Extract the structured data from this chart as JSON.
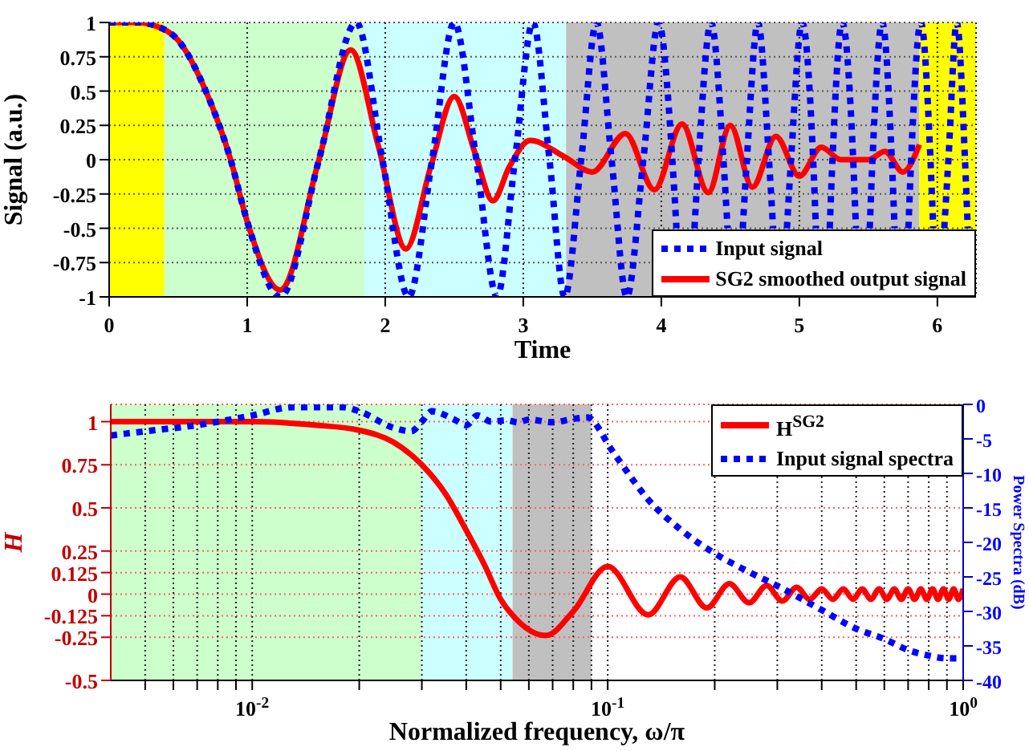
{
  "chart_data": [
    {
      "type": "line",
      "xlabel": "Time",
      "ylabel": "Signal (a.u.)",
      "xlim": [
        0,
        6.28
      ],
      "xticks": [
        0,
        1,
        2,
        3,
        4,
        5,
        6
      ],
      "ylim": [
        -1,
        1
      ],
      "yticks": [
        -1,
        -0.75,
        -0.5,
        -0.25,
        0,
        0.25,
        0.5,
        0.75,
        1
      ],
      "grid": true,
      "legend": "bottom right",
      "bands": [
        {
          "axis": "x",
          "from": 0,
          "to": 0.4,
          "color": "#ffff00"
        },
        {
          "axis": "x",
          "from": 0.4,
          "to": 1.85,
          "color": "#ccffcc"
        },
        {
          "axis": "x",
          "from": 1.85,
          "to": 3.31,
          "color": "#ccffff"
        },
        {
          "axis": "x",
          "from": 3.31,
          "to": 5.87,
          "color": "#c0c0c0"
        },
        {
          "axis": "x",
          "from": 5.87,
          "to": 6.28,
          "color": "#ffff00"
        }
      ],
      "series": [
        {
          "name": "Input signal",
          "color": "#0000ff",
          "line_style": "dotted",
          "x": [
            0,
            0.2,
            0.35,
            0.5,
            0.7,
            0.88,
            1.0,
            1.24,
            1.52,
            1.79,
            1.98,
            2.17,
            2.34,
            2.5,
            2.66,
            2.81,
            2.94,
            3.07,
            3.19,
            3.3,
            3.42,
            3.53,
            3.64,
            3.75,
            3.87,
            3.98,
            4.08,
            4.11,
            4.17,
            4.24,
            4.27,
            4.36,
            4.45,
            4.48,
            4.53,
            4.59,
            4.62,
            4.7,
            4.78,
            4.81,
            4.86,
            4.91,
            4.94,
            5.02,
            5.1,
            5.12,
            5.17,
            5.22,
            5.24,
            5.31,
            5.39,
            5.41,
            5.46,
            5.51,
            5.53,
            5.6,
            5.67,
            5.69,
            5.74,
            5.79,
            5.81,
            5.88,
            5.95,
            5.97,
            6.01,
            6.05,
            6.08,
            6.14,
            6.2,
            6.22
          ],
          "values": [
            1,
            1,
            0.97,
            0.87,
            0.5,
            0,
            -0.45,
            -1,
            0,
            1,
            0,
            -1,
            0,
            1,
            0,
            -1,
            0,
            1,
            0,
            -1,
            0,
            1,
            0,
            -1,
            0,
            1,
            0,
            -0.5,
            null,
            -0.5,
            0,
            1,
            0,
            -0.5,
            null,
            -0.5,
            0,
            1,
            0,
            -0.5,
            null,
            -0.5,
            0,
            1,
            0,
            -0.5,
            null,
            -0.5,
            0,
            1,
            0,
            -0.5,
            null,
            -0.5,
            0,
            1,
            0,
            -0.5,
            null,
            -0.5,
            0,
            1,
            0,
            -0.5,
            null,
            -0.5,
            0,
            1,
            0,
            -0.5
          ]
        },
        {
          "name": "SG2 smoothed output signal",
          "color": "#ff0000",
          "line_style": "solid",
          "x": [
            0,
            0.2,
            0.35,
            0.5,
            0.7,
            0.88,
            1.0,
            1.24,
            1.52,
            1.75,
            1.95,
            2.15,
            2.33,
            2.5,
            2.65,
            2.78,
            2.9,
            3.05,
            3.3,
            3.5,
            3.74,
            3.95,
            4.15,
            4.34,
            4.5,
            4.66,
            4.83,
            5.0,
            5.16,
            5.3,
            5.5,
            5.62,
            5.75,
            5.87
          ],
          "values": [
            1,
            1,
            0.97,
            0.87,
            0.5,
            0,
            -0.45,
            -0.95,
            0,
            0.8,
            0.1,
            -0.65,
            -0.05,
            0.46,
            0.05,
            -0.3,
            -0.05,
            0.14,
            0.02,
            -0.09,
            0.19,
            -0.22,
            0.26,
            -0.24,
            0.25,
            -0.2,
            0.17,
            -0.12,
            0.09,
            0,
            0,
            0.06,
            -0.09,
            0.11
          ]
        }
      ]
    },
    {
      "type": "line",
      "xlabel": "Normalized frequency, ω/π",
      "ylabel": "H",
      "y2label": "Power Spectra (dB)",
      "log": "x",
      "xlim": [
        0.004,
        1
      ],
      "xticks": [
        {
          "value": 0.005,
          "label": null
        },
        {
          "value": 0.006,
          "label": null
        },
        {
          "value": 0.007,
          "label": null
        },
        {
          "value": 0.008,
          "label": null
        },
        {
          "value": 0.009,
          "label": null
        },
        {
          "value": 0.01,
          "label": "10$^{-2}$"
        },
        {
          "value": 0.02,
          "label": null
        },
        {
          "value": 0.03,
          "label": null
        },
        {
          "value": 0.04,
          "label": null
        },
        {
          "value": 0.05,
          "label": null
        },
        {
          "value": 0.06,
          "label": null
        },
        {
          "value": 0.07,
          "label": null
        },
        {
          "value": 0.08,
          "label": null
        },
        {
          "value": 0.09,
          "label": null
        },
        {
          "value": 0.1,
          "label": "10$^{-1}$"
        },
        {
          "value": 0.2,
          "label": null
        },
        {
          "value": 0.3,
          "label": null
        },
        {
          "value": 0.4,
          "label": null
        },
        {
          "value": 0.5,
          "label": null
        },
        {
          "value": 0.6,
          "label": null
        },
        {
          "value": 0.7,
          "label": null
        },
        {
          "value": 0.8,
          "label": null
        },
        {
          "value": 0.9,
          "label": null
        },
        {
          "value": 1,
          "label": "10$^{0}$"
        }
      ],
      "ylim": [
        -0.5,
        1.1
      ],
      "yticks": [
        -0.5,
        -0.25,
        -0.125,
        0,
        0.125,
        0.25,
        0.5,
        0.75,
        1
      ],
      "y2lim": [
        -40,
        0
      ],
      "y2ticks": [
        -40,
        -35,
        -30,
        -25,
        -20,
        -15,
        -10,
        -5,
        0
      ],
      "grid": true,
      "legend": "top right",
      "bands": [
        {
          "axis": "x",
          "from": 0.004,
          "to": 0.03,
          "color": "#ccffcc"
        },
        {
          "axis": "x",
          "from": 0.03,
          "to": 0.054,
          "color": "#ccffff"
        },
        {
          "axis": "x",
          "from": 0.054,
          "to": 0.09,
          "color": "#c0c0c0"
        }
      ],
      "series": [
        {
          "name": "H$^{SG2}$",
          "color": "#ff0000",
          "line_style": "solid",
          "x": [
            0.004,
            0.01,
            0.015,
            0.02,
            0.025,
            0.03,
            0.035,
            0.04,
            0.045,
            0.05,
            0.055,
            0.067,
            0.08,
            0.1,
            0.13,
            0.16,
            0.19,
            0.22,
            0.25,
            0.28,
            0.31,
            0.34,
            0.37,
            0.4,
            0.43,
            0.46,
            0.49,
            0.52,
            0.55,
            0.58,
            0.61,
            0.64,
            0.67,
            0.7,
            0.73,
            0.76,
            0.79,
            0.82,
            0.85,
            0.88,
            0.91,
            0.94,
            0.97,
            1.0
          ],
          "values": [
            1,
            1,
            0.98,
            0.95,
            0.88,
            0.75,
            0.58,
            0.37,
            0.17,
            -0.03,
            -0.14,
            -0.24,
            -0.1,
            0.16,
            -0.12,
            0.1,
            -0.08,
            0.06,
            -0.05,
            0.05,
            -0.04,
            0.04,
            -0.03,
            0.03,
            -0.03,
            0.03,
            -0.03,
            0.03,
            -0.03,
            0.03,
            -0.03,
            0.03,
            -0.03,
            0.03,
            -0.03,
            0.03,
            -0.03,
            0.03,
            -0.03,
            0.03,
            -0.03,
            0.03,
            -0.03,
            0.03
          ]
        },
        {
          "name": "Input signal spectra",
          "color": "#0000ff",
          "line_style": "dotted",
          "axis": "y2",
          "x": [
            0.004,
            0.005,
            0.007,
            0.01,
            0.013,
            0.018,
            0.02,
            0.025,
            0.028,
            0.03,
            0.032,
            0.037,
            0.04,
            0.043,
            0.047,
            0.052,
            0.056,
            0.06,
            0.07,
            0.08,
            0.088,
            0.095,
            0.1,
            0.11,
            0.13,
            0.16,
            0.2,
            0.25,
            0.3,
            0.4,
            0.5,
            0.6,
            0.7,
            0.8,
            0.9,
            1.0
          ],
          "values": [
            -4.5,
            -3.9,
            -3,
            -1.6,
            -0.4,
            -0.4,
            -1,
            -3.4,
            -3.9,
            -2.5,
            -1,
            -2.2,
            -3,
            -1.6,
            -2.5,
            -2.3,
            -2.6,
            -2.2,
            -2.6,
            -2.1,
            -1.9,
            -3.7,
            -5.7,
            -8.8,
            -13.8,
            -18.1,
            -21.6,
            -24.3,
            -26.3,
            -29.8,
            -32.5,
            -34,
            -35.6,
            -36.4,
            -36.8,
            -36.8
          ]
        }
      ]
    }
  ]
}
